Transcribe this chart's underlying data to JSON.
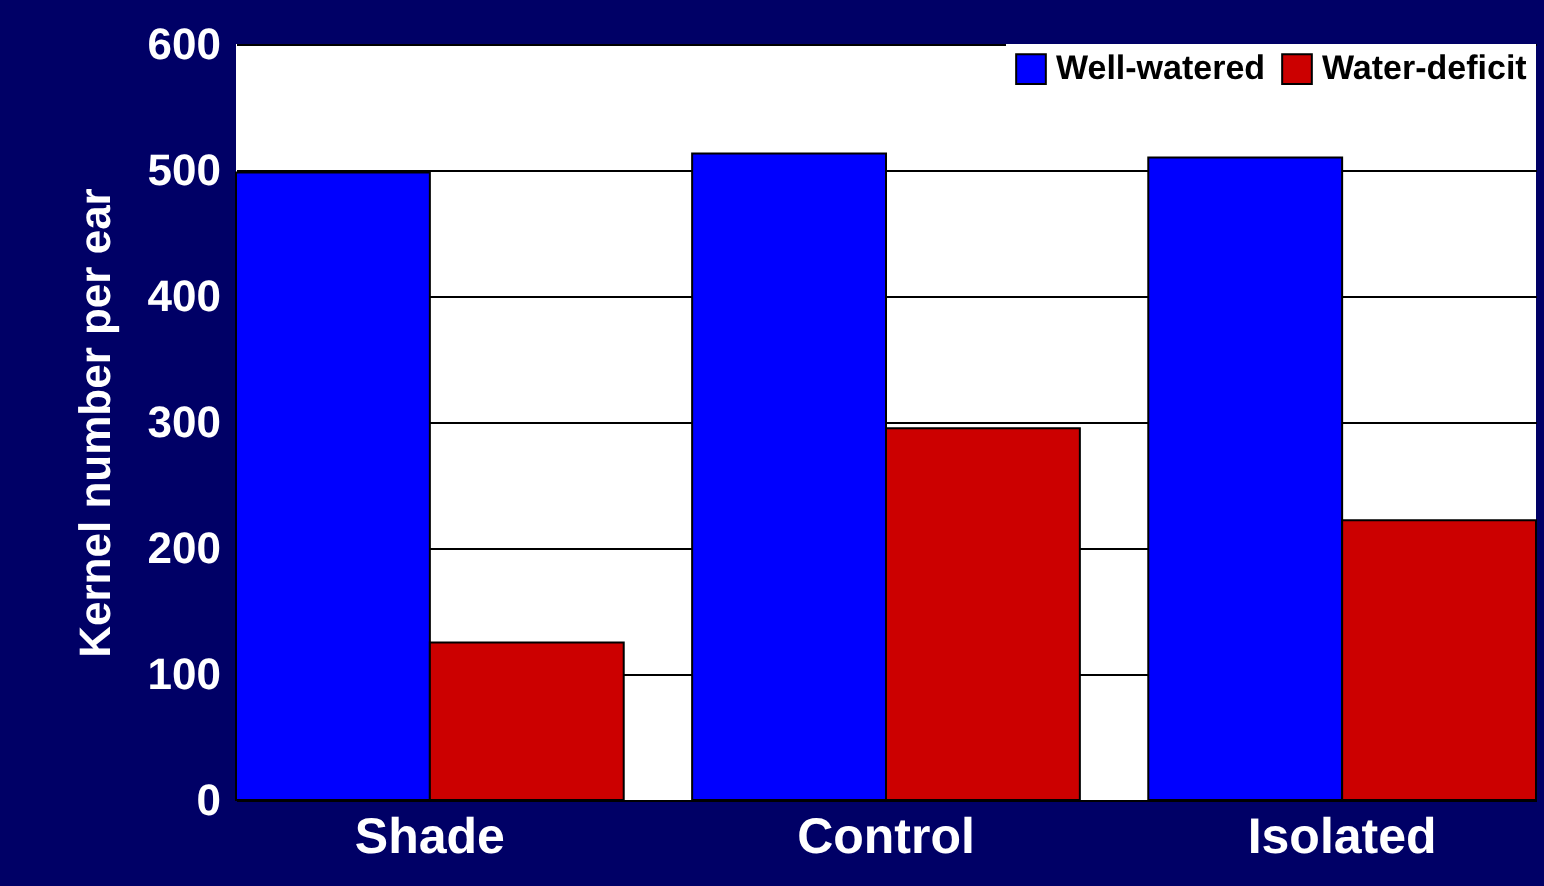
{
  "chart_data": {
    "type": "bar",
    "ylabel": "Kernel number per ear",
    "categories": [
      "Shade",
      "Control",
      "Isolated"
    ],
    "series": [
      {
        "name": "Well-watered",
        "color": "#0000ff",
        "values": [
          498,
          513,
          510
        ]
      },
      {
        "name": "Water-deficit",
        "color": "#cc0000",
        "values": [
          125,
          295,
          222
        ]
      }
    ],
    "ylim": [
      0,
      600
    ],
    "yticks": [
      0,
      100,
      200,
      300,
      400,
      500,
      600
    ],
    "grid": "y",
    "legend": "top right"
  }
}
